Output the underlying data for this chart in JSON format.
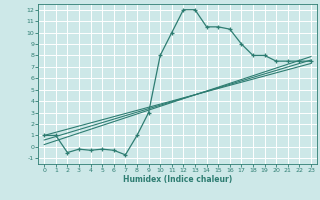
{
  "xlabel": "Humidex (Indice chaleur)",
  "bg_color": "#cde8e8",
  "grid_color": "#ffffff",
  "line_color": "#2e7d72",
  "xlim": [
    -0.5,
    23.5
  ],
  "ylim": [
    -1.5,
    12.5
  ],
  "xticks": [
    0,
    1,
    2,
    3,
    4,
    5,
    6,
    7,
    8,
    9,
    10,
    11,
    12,
    13,
    14,
    15,
    16,
    17,
    18,
    19,
    20,
    21,
    22,
    23
  ],
  "yticks": [
    -1,
    0,
    1,
    2,
    3,
    4,
    5,
    6,
    7,
    8,
    9,
    10,
    11,
    12
  ],
  "curve1_x": [
    0,
    1,
    2,
    3,
    4,
    5,
    6,
    7,
    8,
    9,
    10,
    11,
    12,
    13,
    14,
    15,
    16,
    17,
    18,
    19,
    20,
    21,
    22,
    23
  ],
  "curve1_y": [
    1,
    1,
    -0.5,
    -0.2,
    -0.3,
    -0.2,
    -0.3,
    -0.7,
    1.0,
    3.0,
    8.0,
    10.0,
    12.0,
    12.0,
    10.5,
    10.5,
    10.3,
    9.0,
    8.0,
    8.0,
    7.5,
    7.5,
    7.5,
    7.5
  ],
  "trend1_x": [
    0,
    23
  ],
  "trend1_y": [
    1.0,
    7.3
  ],
  "trend2_x": [
    0,
    23
  ],
  "trend2_y": [
    0.6,
    7.6
  ],
  "trend3_x": [
    0,
    23
  ],
  "trend3_y": [
    0.2,
    7.9
  ]
}
